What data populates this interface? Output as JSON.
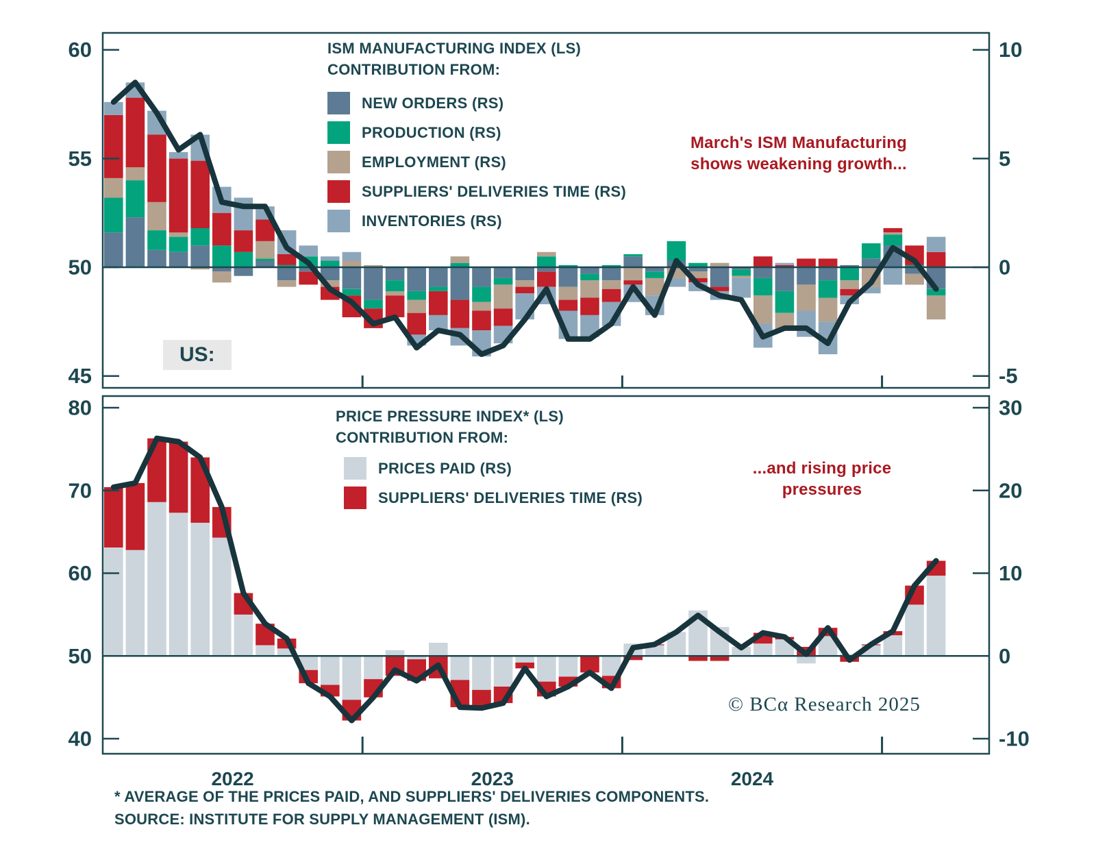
{
  "theme": {
    "background": "#ffffff",
    "axis_color": "#1d4750",
    "text_color": "#1d4750",
    "annotation_color": "#a91920",
    "us_box_bg": "#e8e8e8"
  },
  "us_label": "US:",
  "copyright": "© BCα Research 2025",
  "annotations": {
    "top": "March's ISM Manufacturing\nshows weakening growth...",
    "bottom": "...and rising price\npressures"
  },
  "footnotes": {
    "line1": "* AVERAGE OF THE PRICES PAID, AND SUPPLIERS' DELIVERIES COMPONENTS.",
    "line2": "SOURCE: INSTITUTE FOR SUPPLY MANAGEMENT (ISM)."
  },
  "x_axis": {
    "year_labels": [
      "2022",
      "2023",
      "2024"
    ],
    "frequency": "monthly",
    "n_months": 39
  },
  "chart_data": [
    {
      "type": "bar+line",
      "name": "ism-manufacturing",
      "title": "ISM MANUFACTURING INDEX (LS)",
      "subtitle": "CONTRIBUTION FROM:",
      "baseline": 50,
      "left_axis": {
        "ticks": [
          60,
          55,
          50,
          45
        ]
      },
      "right_axis": {
        "ticks": [
          10,
          5,
          0,
          -5
        ]
      },
      "line": {
        "name": "ISM MANUFACTURING INDEX (LS)",
        "color": "#18343c",
        "values": [
          57.6,
          58.5,
          57.1,
          55.4,
          56.1,
          53.0,
          52.8,
          52.8,
          50.9,
          50.2,
          49.0,
          48.4,
          47.4,
          47.7,
          46.3,
          47.1,
          46.9,
          46.0,
          46.4,
          47.6,
          49.0,
          46.7,
          46.7,
          47.4,
          49.1,
          47.8,
          50.3,
          49.2,
          48.7,
          48.5,
          46.8,
          47.2,
          47.2,
          46.5,
          48.4,
          49.3,
          50.9,
          50.3,
          49.0
        ]
      },
      "series": [
        {
          "name": "NEW ORDERS (RS)",
          "color": "#5d7b94",
          "values": [
            1.6,
            2.3,
            0.8,
            0.7,
            1.0,
            -0.2,
            -0.4,
            0.3,
            -0.6,
            -0.2,
            -0.6,
            -1.0,
            -1.5,
            -0.6,
            -1.1,
            -0.9,
            -1.5,
            -0.9,
            -0.5,
            -0.6,
            -0.2,
            -0.9,
            -0.3,
            -0.6,
            0.5,
            -0.2,
            0.3,
            -0.2,
            -0.9,
            -0.1,
            -0.5,
            -1.1,
            -0.8,
            -0.6,
            0.1,
            0.4,
            1.0,
            -0.3,
            -1.0
          ]
        },
        {
          "name": "PRODUCTION (RS)",
          "color": "#03a47d",
          "values": [
            1.6,
            1.7,
            0.9,
            0.7,
            0.8,
            1.0,
            0.7,
            0.1,
            0.1,
            0.5,
            0.3,
            -0.3,
            -0.4,
            -0.5,
            -0.4,
            -0.2,
            0.2,
            -0.7,
            -0.3,
            0.0,
            0.5,
            0.1,
            -0.3,
            0.1,
            0.1,
            -0.3,
            0.9,
            0.2,
            0.0,
            -0.3,
            -0.8,
            -1.0,
            0.0,
            -0.8,
            -0.6,
            0.7,
            0.5,
            0.1,
            -0.3
          ]
        },
        {
          "name": "EMPLOYMENT (RS)",
          "color": "#b4a18e",
          "values": [
            0.9,
            0.6,
            1.3,
            0.2,
            -0.1,
            -0.5,
            0.0,
            0.8,
            -0.3,
            0.0,
            -0.3,
            0.3,
            0.1,
            -0.2,
            -0.6,
            0.0,
            0.3,
            -0.4,
            -1.1,
            -0.3,
            0.2,
            -0.6,
            -0.8,
            -0.4,
            -0.6,
            -0.8,
            -0.5,
            -0.3,
            0.2,
            -0.1,
            -1.3,
            -0.8,
            -1.2,
            -1.1,
            -0.4,
            -0.9,
            0.1,
            -0.5,
            -1.1
          ]
        },
        {
          "name": "SUPPLIERS' DELIVERIES TIME (RS)",
          "color": "#c2202a",
          "values": [
            2.9,
            3.2,
            3.1,
            3.4,
            3.1,
            1.5,
            1.0,
            1.0,
            0.5,
            -0.6,
            -0.6,
            -1.0,
            -0.9,
            -1.0,
            -1.0,
            -1.1,
            -1.3,
            -0.9,
            -0.8,
            -0.3,
            -0.7,
            -0.5,
            -0.8,
            -0.6,
            -0.2,
            0.0,
            0.0,
            -0.2,
            -0.2,
            0.0,
            0.5,
            0.1,
            0.4,
            0.4,
            -0.3,
            0.0,
            0.2,
            0.9,
            0.7
          ]
        },
        {
          "name": "INVENTORIES (RS)",
          "color": "#8ca7bc",
          "values": [
            0.6,
            0.7,
            1.1,
            0.3,
            1.2,
            1.2,
            1.5,
            0.6,
            1.1,
            0.5,
            0.2,
            0.4,
            0.0,
            0.0,
            -0.5,
            -0.7,
            -0.8,
            -1.2,
            -0.8,
            -1.2,
            -0.8,
            -1.3,
            -1.0,
            -1.1,
            -0.8,
            -0.9,
            -0.4,
            -0.4,
            -0.4,
            -0.9,
            -1.1,
            0.1,
            -1.2,
            -1.5,
            -0.4,
            -0.3,
            -0.8,
            0.0,
            0.7
          ]
        }
      ]
    },
    {
      "type": "bar+line",
      "name": "price-pressure",
      "title": "PRICE PRESSURE INDEX* (LS)",
      "subtitle": "CONTRIBUTION FROM:",
      "baseline": 50,
      "left_axis": {
        "ticks": [
          80,
          70,
          60,
          50,
          40
        ]
      },
      "right_axis": {
        "ticks": [
          30,
          20,
          10,
          0,
          -10
        ]
      },
      "line": {
        "name": "PRICE PRESSURE INDEX* (LS)",
        "color": "#18343c",
        "values": [
          70.4,
          70.9,
          76.3,
          75.9,
          74.0,
          68.0,
          57.6,
          53.9,
          52.1,
          46.7,
          45.1,
          42.2,
          45.0,
          48.3,
          47.0,
          48.9,
          43.8,
          43.7,
          44.3,
          48.5,
          45.1,
          46.3,
          48.0,
          46.1,
          51.0,
          51.4,
          52.9,
          54.9,
          52.9,
          51.0,
          52.8,
          52.3,
          50.2,
          53.4,
          49.5,
          51.4,
          53.0,
          58.5,
          61.5
        ]
      },
      "series": [
        {
          "name": "PRICES PAID (RS)",
          "color": "#ccd5dc",
          "values": [
            13.1,
            12.8,
            18.6,
            17.3,
            16.1,
            14.3,
            5.0,
            1.3,
            0.9,
            -1.7,
            -3.5,
            -5.3,
            -2.8,
            0.7,
            -0.4,
            1.6,
            -2.9,
            -4.1,
            -3.7,
            -0.8,
            -3.1,
            -2.5,
            -0.1,
            -2.4,
            1.5,
            1.3,
            2.9,
            5.5,
            3.5,
            1.1,
            1.5,
            2.0,
            -0.9,
            2.4,
            0.2,
            1.3,
            2.5,
            6.2,
            9.7
          ]
        },
        {
          "name": "SUPPLIERS' DELIVERIES TIME (RS)",
          "color": "#c2202a",
          "values": [
            7.3,
            8.1,
            7.7,
            8.6,
            7.9,
            3.7,
            2.6,
            2.6,
            1.2,
            -1.6,
            -1.4,
            -2.5,
            -2.2,
            -2.4,
            -2.6,
            -2.7,
            -3.3,
            -2.2,
            -2.0,
            -0.7,
            -1.8,
            -1.2,
            -1.9,
            -1.5,
            -0.5,
            0.1,
            0.0,
            -0.6,
            -0.6,
            -0.1,
            1.3,
            0.3,
            1.1,
            1.0,
            -0.7,
            0.1,
            0.5,
            2.3,
            1.8
          ]
        }
      ]
    }
  ]
}
